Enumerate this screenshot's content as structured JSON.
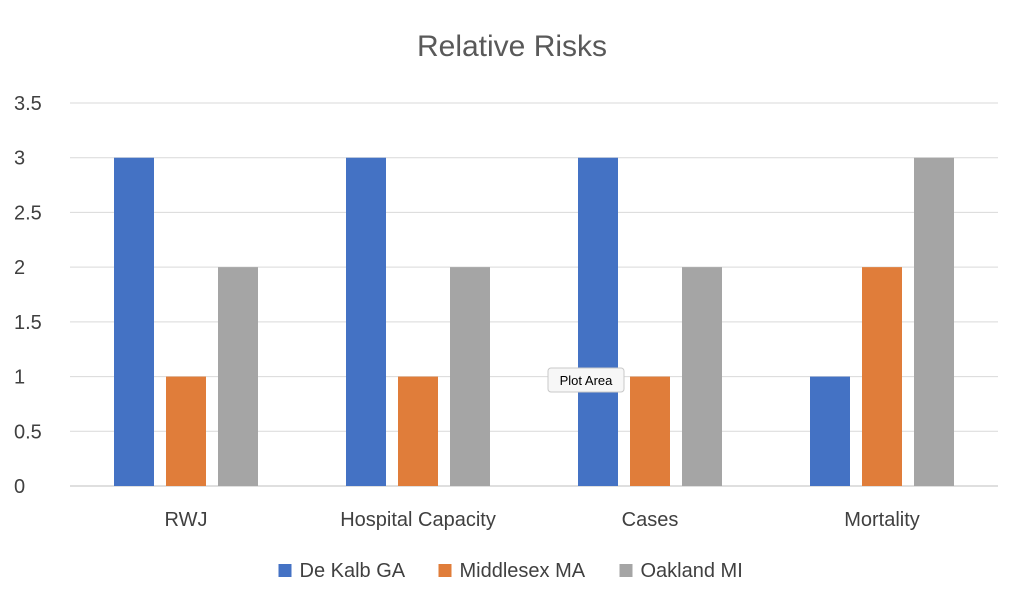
{
  "chart_data": {
    "type": "bar",
    "title": "Relative Risks",
    "xlabel": "",
    "ylabel": "",
    "categories": [
      "RWJ",
      "Hospital Capacity",
      "Cases",
      "Mortality"
    ],
    "series": [
      {
        "name": "De Kalb GA",
        "values": [
          3,
          3,
          3,
          1
        ],
        "color": "#4472C4"
      },
      {
        "name": "Middlesex MA",
        "values": [
          1,
          1,
          1,
          2
        ],
        "color": "#E07D3A"
      },
      {
        "name": "Oakland MI",
        "values": [
          2,
          2,
          2,
          3
        ],
        "color": "#A5A5A5"
      }
    ],
    "ylim": [
      0,
      3.5
    ],
    "yticks": [
      "0",
      "0.5",
      "1",
      "1.5",
      "2",
      "2.5",
      "3",
      "3.5"
    ],
    "grid": true,
    "legend_position": "bottom"
  },
  "tooltip": {
    "label": "Plot Area"
  }
}
